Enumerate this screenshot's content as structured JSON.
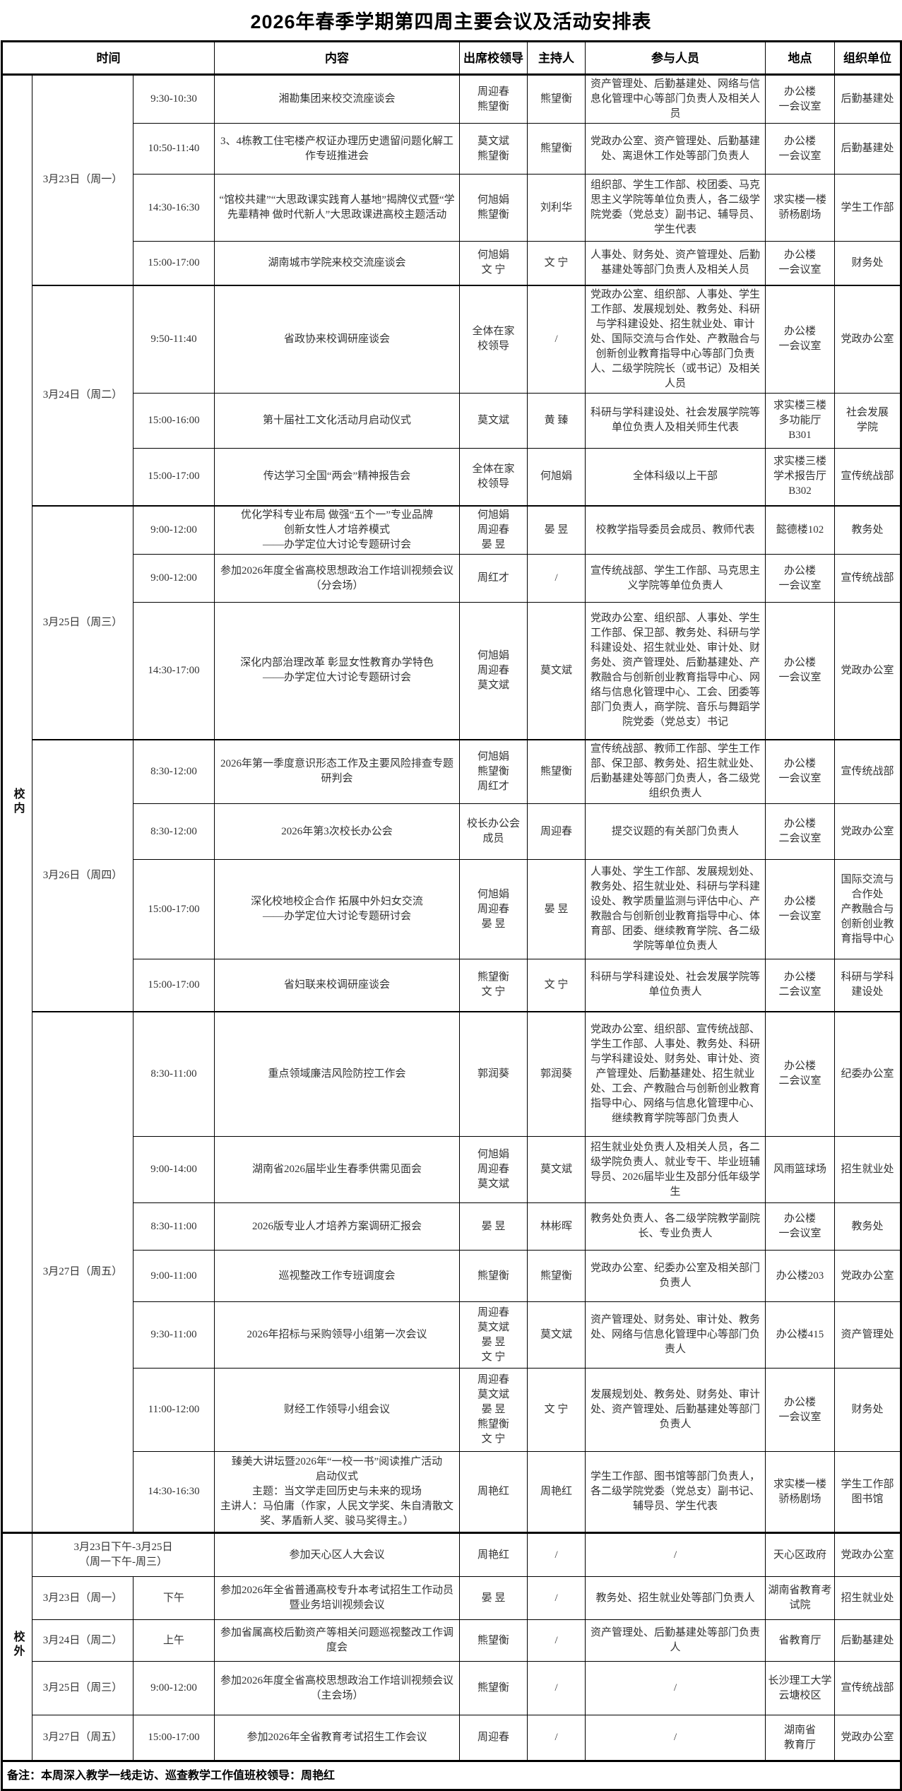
{
  "title": "2026年春季学期第四周主要会议及活动安排表",
  "columns": {
    "time_group": "时间",
    "content": "内容",
    "leaders": "出席校领导",
    "host": "主持人",
    "participants": "参与人员",
    "location": "地点",
    "org": "组织单位"
  },
  "footer": "备注：本周深入教学一线走访、巡查教学工作值班校领导：周艳红",
  "sections": [
    {
      "scope": "校内",
      "groups": [
        {
          "date": "3月23日（周一）",
          "rows": [
            {
              "time": "9:30-10:30",
              "content": "湘勘集团来校交流座谈会",
              "leaders": "周迎春\n熊望衡",
              "host": "熊望衡",
              "participants": "资产管理处、后勤基建处、网络与信息化管理中心等部门负责人及相关人员",
              "location": "办公楼\n一会议室",
              "org": "后勤基建处"
            },
            {
              "time": "10:50-11:40",
              "content": "3、4栋教工住宅楼产权证办理历史遗留问题化解工作专班推进会",
              "leaders": "莫文斌\n熊望衡",
              "host": "熊望衡",
              "participants": "党政办公室、资产管理处、后勤基建处、离退休工作处等部门负责人",
              "location": "办公楼\n一会议室",
              "org": "后勤基建处"
            },
            {
              "time": "14:30-16:30",
              "content": "“馆校共建”“大思政课实践育人基地”揭牌仪式暨“学先辈精神 做时代新人”大思政课进高校主题活动",
              "leaders": "何旭娟\n熊望衡",
              "host": "刘利华",
              "participants": "组织部、学生工作部、校团委、马克思主义学院等单位负责人，各二级学院党委（党总支）副书记、辅导员、学生代表",
              "location": "求实楼一楼\n骄杨剧场",
              "org": "学生工作部"
            },
            {
              "time": "15:00-17:00",
              "content": "湖南城市学院来校交流座谈会",
              "leaders": "何旭娟\n文 宁",
              "host": "文 宁",
              "participants": "人事处、财务处、资产管理处、后勤基建处等部门负责人及相关人员",
              "location": "办公楼\n一会议室",
              "org": "财务处"
            }
          ]
        },
        {
          "date": "3月24日（周二）",
          "rows": [
            {
              "time": "9:50-11:40",
              "content": "省政协来校调研座谈会",
              "leaders": "全体在家\n校领导",
              "host": "/",
              "participants": "党政办公室、组织部、人事处、学生工作部、发展规划处、教务处、科研与学科建设处、招生就业处、审计处、国际交流与合作处、产教融合与创新创业教育指导中心等部门负责人、二级学院院长（或书记）及相关人员",
              "location": "办公楼\n一会议室",
              "org": "党政办公室"
            },
            {
              "time": "15:00-16:00",
              "content": "第十届社工文化活动月启动仪式",
              "leaders": "莫文斌",
              "host": "黄 臻",
              "participants": "科研与学科建设处、社会发展学院等单位负责人及相关师生代表",
              "location": "求实楼三楼\n多功能厅\nB301",
              "org": "社会发展\n学院"
            },
            {
              "time": "15:00-17:00",
              "content": "传达学习全国“两会”精神报告会",
              "leaders": "全体在家\n校领导",
              "host": "何旭娟",
              "participants": "全体科级以上干部",
              "location": "求实楼三楼\n学术报告厅\nB302",
              "org": "宣传统战部"
            }
          ]
        },
        {
          "date": "3月25日（周三）",
          "rows": [
            {
              "time": "9:00-12:00",
              "content": "优化学科专业布局 做强“五个一”专业品牌\n创新女性人才培养模式\n——办学定位大讨论专题研讨会",
              "leaders": "何旭娟\n周迎春\n晏 昱",
              "host": "晏 昱",
              "participants": "校教学指导委员会成员、教师代表",
              "location": "懿德楼102",
              "org": "教务处"
            },
            {
              "time": "9:00-12:00",
              "content": "参加2026年度全省高校思想政治工作培训视频会议（分会场）",
              "leaders": "周红才",
              "host": "/",
              "participants": "宣传统战部、学生工作部、马克思主义学院等单位负责人",
              "location": "办公楼\n一会议室",
              "org": "宣传统战部"
            },
            {
              "time": "14:30-17:00",
              "content": "深化内部治理改革 彰显女性教育办学特色\n——办学定位大讨论专题研讨会",
              "leaders": "何旭娟\n周迎春\n莫文斌",
              "host": "莫文斌",
              "participants": "党政办公室、组织部、人事处、学生工作部、保卫部、教务处、科研与学科建设处、招生就业处、审计处、财务处、资产管理处、后勤基建处、产教融合与创新创业教育指导中心、网络与信息化管理中心、工会、团委等部门负责人，商学院、音乐与舞蹈学院党委（党总支）书记",
              "location": "办公楼\n一会议室",
              "org": "党政办公室"
            }
          ]
        },
        {
          "date": "3月26日（周四）",
          "rows": [
            {
              "time": "8:30-12:00",
              "content": "2026年第一季度意识形态工作及主要风险排查专题研判会",
              "leaders": "何旭娟\n熊望衡\n周红才",
              "host": "熊望衡",
              "participants": "宣传统战部、教师工作部、学生工作部、保卫部、教务处、招生就业处、后勤基建处等部门负责人，各二级党组织负责人",
              "location": "办公楼\n一会议室",
              "org": "宣传统战部"
            },
            {
              "time": "8:30-12:00",
              "content": "2026年第3次校长办公会",
              "leaders": "校长办公会\n成员",
              "host": "周迎春",
              "participants": "提交议题的有关部门负责人",
              "location": "办公楼\n二会议室",
              "org": "党政办公室"
            },
            {
              "time": "15:00-17:00",
              "content": "深化校地校企合作 拓展中外妇女交流\n——办学定位大讨论专题研讨会",
              "leaders": "何旭娟\n周迎春\n晏 昱",
              "host": "晏 昱",
              "participants": "人事处、学生工作部、发展规划处、教务处、招生就业处、科研与学科建设处、教学质量监测与评估中心、产教融合与创新创业教育指导中心、体育部、团委、继续教育学院、各二级学院等单位负责人",
              "location": "办公楼\n一会议室",
              "org": "国际交流与合作处\n产教融合与创新创业教育指导中心"
            },
            {
              "time": "15:00-17:00",
              "content": "省妇联来校调研座谈会",
              "leaders": "熊望衡\n文 宁",
              "host": "文 宁",
              "participants": "科研与学科建设处、社会发展学院等单位负责人",
              "location": "办公楼\n二会议室",
              "org": "科研与学科建设处"
            }
          ]
        },
        {
          "date": "3月27日（周五）",
          "rows": [
            {
              "time": "8:30-11:00",
              "content": "重点领域廉洁风险防控工作会",
              "leaders": "郭润葵",
              "host": "郭润葵",
              "participants": "党政办公室、组织部、宣传统战部、学生工作部、人事处、教务处、科研与学科建设处、财务处、审计处、资产管理处、后勤基建处、招生就业处、工会、产教融合与创新创业教育指导中心、网络与信息化管理中心、继续教育学院等部门负责人",
              "location": "办公楼\n二会议室",
              "org": "纪委办公室"
            },
            {
              "time": "9:00-14:00",
              "content": "湖南省2026届毕业生春季供需见面会",
              "leaders": "何旭娟\n周迎春\n莫文斌",
              "host": "莫文斌",
              "participants": "招生就业处负责人及相关人员，各二级学院负责人、就业专干、毕业班辅导员、2026届毕业生及部分低年级学生",
              "location": "风雨篮球场",
              "org": "招生就业处"
            },
            {
              "time": "8:30-11:00",
              "content": "2026版专业人才培养方案调研汇报会",
              "leaders": "晏 昱",
              "host": "林彬晖",
              "participants": "教务处负责人、各二级学院教学副院长、专业负责人",
              "location": "办公楼\n一会议室",
              "org": "教务处"
            },
            {
              "time": "9:00-11:00",
              "content": "巡视整改工作专班调度会",
              "leaders": "熊望衡",
              "host": "熊望衡",
              "participants": "党政办公室、纪委办公室及相关部门负责人",
              "location": "办公楼203",
              "org": "党政办公室"
            },
            {
              "time": "9:30-11:00",
              "content": "2026年招标与采购领导小组第一次会议",
              "leaders": "周迎春\n莫文斌\n晏 昱\n文 宁",
              "host": "莫文斌",
              "participants": "资产管理处、财务处、审计处、教务处、网络与信息化管理中心等部门负责人",
              "location": "办公楼415",
              "org": "资产管理处"
            },
            {
              "time": "11:00-12:00",
              "content": "财经工作领导小组会议",
              "leaders": "周迎春\n莫文斌\n晏 昱\n熊望衡\n文 宁",
              "host": "文 宁",
              "participants": "发展规划处、教务处、财务处、审计处、资产管理处、后勤基建处等部门负责人",
              "location": "办公楼\n一会议室",
              "org": "财务处"
            },
            {
              "time": "14:30-16:30",
              "content": "臻美大讲坛暨2026年“一校一书”阅读推广活动\n启动仪式\n主题：当文学走回历史与未来的现场\n主讲人：马伯庸（作家，人民文学奖、朱自清散文奖、茅盾新人奖、骏马奖得主。）",
              "leaders": "周艳红",
              "host": "周艳红",
              "participants": "学生工作部、图书馆等部门负责人，各二级学院党委（党总支）副书记、辅导员、学生代表",
              "location": "求实楼一楼\n骄杨剧场",
              "org": "学生工作部\n图书馆"
            }
          ]
        }
      ]
    },
    {
      "scope": "校外",
      "groups": [
        {
          "date": "3月23日下午-3月25日\n（周一下午-周三）",
          "spans_time": true,
          "rows": [
            {
              "time": "",
              "content": "参加天心区人大会议",
              "leaders": "周艳红",
              "host": "/",
              "participants": "/",
              "location": "天心区政府",
              "org": "党政办公室"
            }
          ]
        },
        {
          "date": "3月23日（周一）",
          "rows": [
            {
              "time": "下午",
              "content": "参加2026年全省普通高校专升本考试招生工作动员暨业务培训视频会议",
              "leaders": "晏 昱",
              "host": "/",
              "participants": "教务处、招生就业处等部门负责人",
              "location": "湖南省教育考试院",
              "org": "招生就业处"
            }
          ]
        },
        {
          "date": "3月24日（周二）",
          "rows": [
            {
              "time": "上午",
              "content": "参加省属高校后勤资产等相关问题巡视整改工作调度会",
              "leaders": "熊望衡",
              "host": "/",
              "participants": "资产管理处、后勤基建处等部门负责人",
              "location": "省教育厅",
              "org": "后勤基建处"
            }
          ]
        },
        {
          "date": "3月25日（周三）",
          "rows": [
            {
              "time": "9:00-12:00",
              "content": "参加2026年度全省高校思想政治工作培训视频会议（主会场）",
              "leaders": "熊望衡",
              "host": "/",
              "participants": "/",
              "location": "长沙理工大学云塘校区",
              "org": "宣传统战部"
            }
          ]
        },
        {
          "date": "3月27日（周五）",
          "rows": [
            {
              "time": "15:00-17:00",
              "content": "参加2026年全省教育考试招生工作会议",
              "leaders": "周迎春",
              "host": "/",
              "participants": "/",
              "location": "湖南省\n教育厅",
              "org": "党政办公室"
            }
          ]
        }
      ]
    }
  ]
}
